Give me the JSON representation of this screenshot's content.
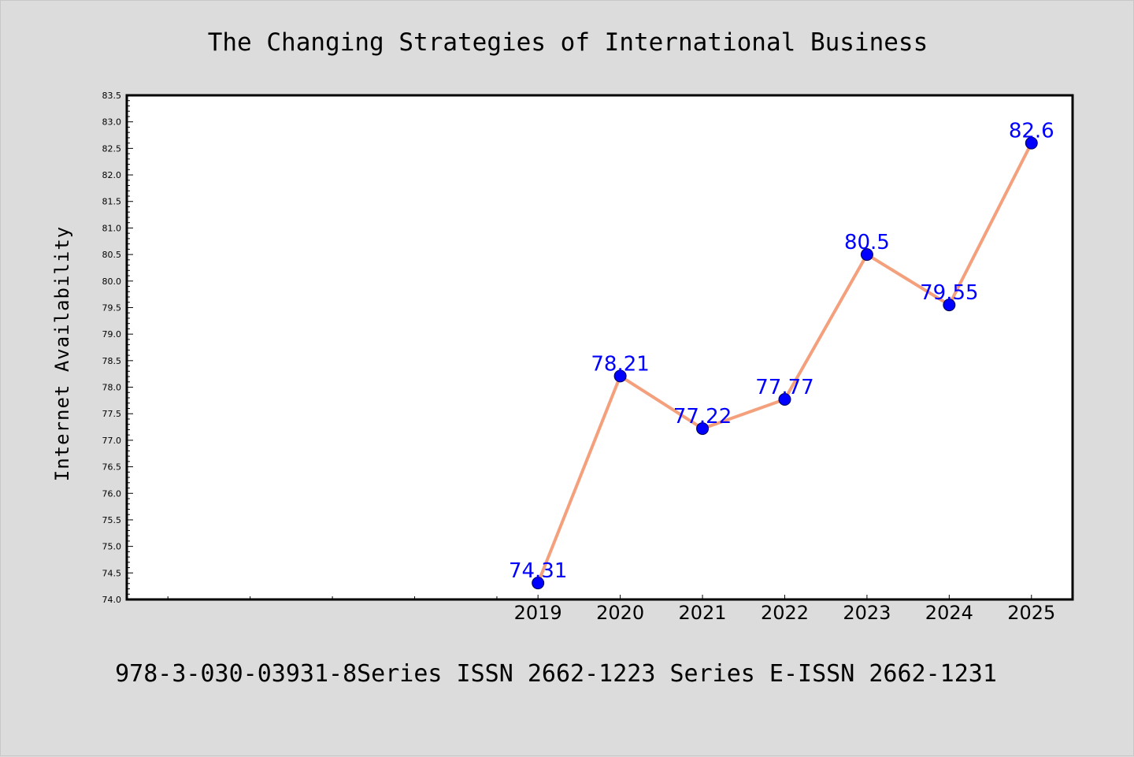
{
  "chart_data": {
    "type": "line",
    "title": "The Changing Strategies of International Business",
    "ylabel": "Internet Availability",
    "xlabel": "",
    "x_range": [
      2014,
      2025.5
    ],
    "categories": [
      "2019",
      "2020",
      "2021",
      "2022",
      "2023",
      "2024",
      "2025"
    ],
    "x": [
      2019,
      2020,
      2021,
      2022,
      2023,
      2024,
      2025
    ],
    "values": [
      74.31,
      78.21,
      77.22,
      77.77,
      80.5,
      79.55,
      82.6
    ],
    "data_labels": [
      "74.31",
      "78.21",
      "77.22",
      "77.77",
      "80.5",
      "79.55",
      "82.6"
    ],
    "ylim": [
      74.0,
      83.5
    ],
    "y_ticks": [
      "74.0",
      "74.5",
      "75.0",
      "75.5",
      "76.0",
      "76.5",
      "77.0",
      "77.5",
      "78.0",
      "78.5",
      "79.0",
      "79.5",
      "80.0",
      "80.5",
      "81.0",
      "81.5",
      "82.0",
      "82.5",
      "83.0",
      "83.5"
    ],
    "grid": false,
    "line_color": "#f4a07c",
    "marker_color": "#0000ff",
    "label_color": "#0000ff"
  },
  "footer": {
    "text": "978-3-030-03931-8Series ISSN 2662-1223 Series E-ISSN 2662-1231"
  }
}
